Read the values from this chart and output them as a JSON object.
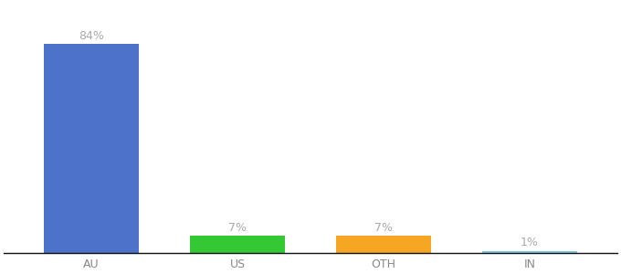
{
  "categories": [
    "AU",
    "US",
    "OTH",
    "IN"
  ],
  "values": [
    84,
    7,
    7,
    1
  ],
  "bar_colors": [
    "#4d72c9",
    "#34c934",
    "#f5a623",
    "#7ec8e3"
  ],
  "labels": [
    "84%",
    "7%",
    "7%",
    "1%"
  ],
  "background_color": "#ffffff",
  "label_color": "#aaaaaa",
  "label_fontsize": 9,
  "tick_fontsize": 9,
  "ylim": [
    0,
    100
  ],
  "bar_width": 0.65
}
